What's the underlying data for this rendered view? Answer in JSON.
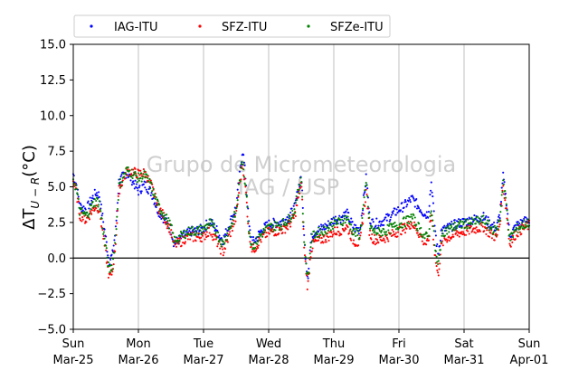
{
  "chart_data": {
    "type": "scatter",
    "ylabel_base": "ΔT",
    "ylabel_sub": "U − R",
    "ylabel_unit": "(°C)",
    "ylim": [
      -5.0,
      15.0
    ],
    "yticks": [
      "−5.0",
      "−2.5",
      "0.0",
      "2.5",
      "5.0",
      "7.5",
      "10.0",
      "12.5",
      "15.0"
    ],
    "ytick_values": [
      -5.0,
      -2.5,
      0.0,
      2.5,
      5.0,
      7.5,
      10.0,
      12.5,
      15.0
    ],
    "xlim": [
      0,
      7
    ],
    "xticks": [
      {
        "day": "Sun",
        "date": "Mar-25"
      },
      {
        "day": "Mon",
        "date": "Mar-26"
      },
      {
        "day": "Tue",
        "date": "Mar-27"
      },
      {
        "day": "Wed",
        "date": "Mar-28"
      },
      {
        "day": "Thu",
        "date": "Mar-29"
      },
      {
        "day": "Fri",
        "date": "Mar-30"
      },
      {
        "day": "Sat",
        "date": "Mar-31"
      },
      {
        "day": "Sun",
        "date": "Apr-01"
      }
    ],
    "grid": "vertical",
    "zero_line": true,
    "legend_position": "top",
    "watermark": [
      "Grupo de Micrometeorologia",
      "IAG / USP"
    ],
    "series": [
      {
        "name": "IAG-ITU",
        "color": "#0000ff"
      },
      {
        "name": "SFZ-ITU",
        "color": "#ff0000"
      },
      {
        "name": "SFZe-ITU",
        "color": "#008000"
      }
    ],
    "base_curve": {
      "x": [
        0.0,
        0.05,
        0.1,
        0.2,
        0.3,
        0.35,
        0.4,
        0.5,
        0.55,
        0.6,
        0.65,
        0.7,
        0.75,
        0.82,
        0.9,
        1.0,
        1.1,
        1.2,
        1.3,
        1.4,
        1.5,
        1.55,
        1.65,
        1.7,
        1.8,
        1.9,
        2.0,
        2.1,
        2.15,
        2.2,
        2.25,
        2.3,
        2.4,
        2.5,
        2.55,
        2.6,
        2.65,
        2.7,
        2.75,
        2.8,
        2.85,
        2.9,
        3.0,
        3.1,
        3.2,
        3.3,
        3.4,
        3.5,
        3.55,
        3.6,
        3.65,
        3.7,
        3.8,
        3.9,
        4.0,
        4.1,
        4.2,
        4.3,
        4.4,
        4.5,
        4.55,
        4.6,
        4.65,
        4.7,
        4.8,
        4.9,
        5.0,
        5.1,
        5.2,
        5.3,
        5.4,
        5.45,
        5.5,
        5.55,
        5.6,
        5.65,
        5.7,
        5.8,
        5.9,
        6.0,
        6.1,
        6.2,
        6.3,
        6.4,
        6.5,
        6.55,
        6.6,
        6.65,
        6.7,
        6.8,
        6.9,
        7.0
      ],
      "y": [
        5.6,
        4.8,
        3.3,
        3.0,
        3.8,
        4.1,
        3.9,
        0.8,
        -0.8,
        -0.4,
        1.5,
        5.1,
        5.6,
        6.2,
        6.0,
        5.6,
        5.8,
        5.0,
        3.7,
        3.0,
        2.2,
        1.2,
        1.5,
        1.7,
        1.9,
        1.9,
        2.0,
        2.5,
        2.1,
        1.8,
        1.3,
        1.0,
        2.1,
        3.2,
        5.2,
        6.9,
        4.9,
        1.8,
        0.8,
        1.0,
        1.4,
        1.7,
        2.1,
        2.2,
        2.3,
        2.6,
        3.3,
        5.7,
        0.8,
        -1.6,
        1.1,
        1.6,
        1.8,
        2.0,
        2.4,
        2.5,
        2.8,
        1.8,
        1.6,
        5.3,
        2.3,
        1.9,
        1.8,
        1.8,
        1.9,
        2.1,
        2.3,
        2.5,
        2.8,
        2.1,
        1.4,
        1.4,
        3.6,
        0.8,
        -0.8,
        1.3,
        1.8,
        2.0,
        2.2,
        2.3,
        2.4,
        2.5,
        2.6,
        2.1,
        1.8,
        2.8,
        5.4,
        3.7,
        1.3,
        2.0,
        2.3,
        2.5
      ]
    },
    "series_offsets": [
      {
        "x": [
          0.0,
          0.6,
          0.9,
          1.0,
          1.2,
          2.55,
          2.6,
          2.7,
          3.55,
          4.5,
          5.5,
          5.7,
          6.6,
          7.0
        ],
        "dy": [
          0.3,
          0.6,
          -0.5,
          -0.9,
          -0.4,
          0.4,
          0.8,
          0.3,
          0.2,
          0.4,
          1.8,
          0.2,
          0.3,
          0.2
        ]
      },
      {
        "x": [
          0.0,
          0.6,
          1.0,
          1.5,
          2.3,
          2.6,
          3.5,
          3.6,
          4.4,
          5.3,
          5.6,
          6.4,
          7.0
        ],
        "dy": [
          -0.2,
          -0.6,
          0.3,
          -0.3,
          -0.6,
          -0.2,
          -0.4,
          -0.5,
          -0.6,
          -0.3,
          -0.5,
          -0.4,
          -0.2
        ]
      },
      {
        "x": [
          0.0,
          0.6,
          1.0,
          2.6,
          3.5,
          4.5,
          5.6,
          7.0
        ],
        "dy": [
          0.0,
          -0.1,
          0.0,
          0.0,
          0.1,
          0.0,
          0.1,
          0.0
        ]
      }
    ]
  }
}
